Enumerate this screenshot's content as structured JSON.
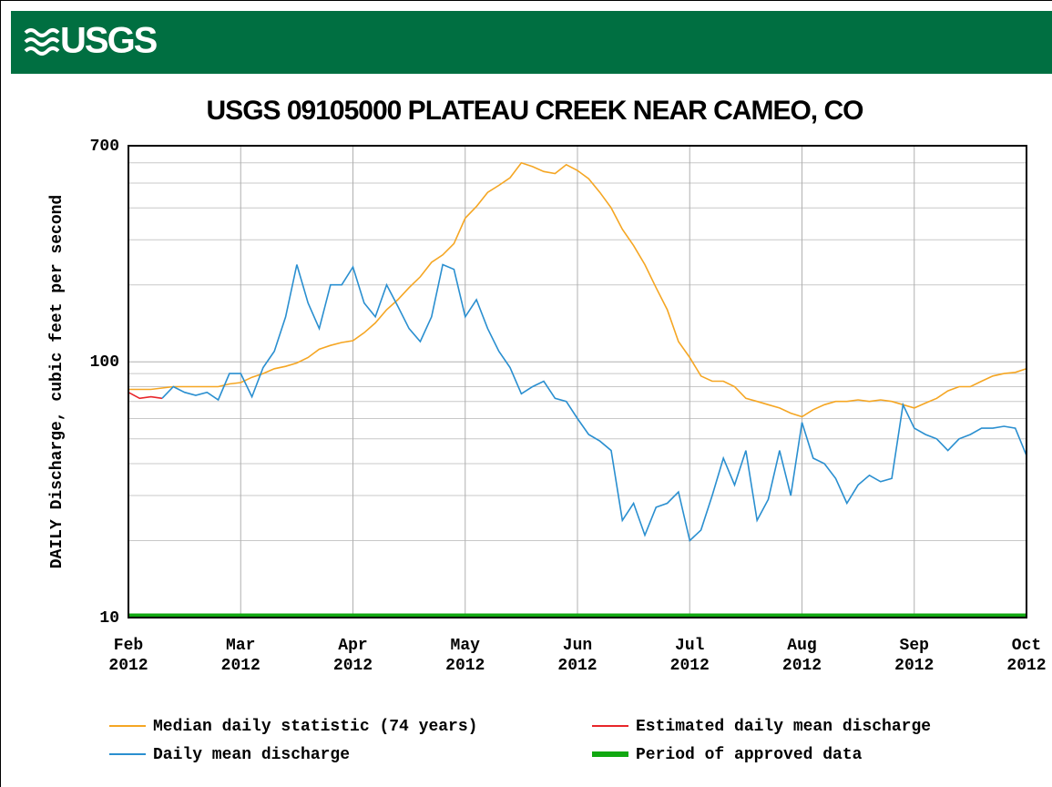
{
  "header": {
    "logo": "USGS"
  },
  "chart_data": {
    "type": "line",
    "title": "USGS 09105000 PLATEAU CREEK NEAR CAMEO, CO",
    "y_label": "DAILY Discharge, cubic feet per second",
    "log_y": true,
    "grid": true,
    "ylim": [
      10,
      700
    ],
    "yticks": [
      10,
      100,
      700
    ],
    "yminorticks": [
      20,
      30,
      40,
      50,
      60,
      70,
      80,
      90,
      200,
      300,
      400,
      500,
      600
    ],
    "categories": [
      "Feb 2012",
      null,
      null,
      null,
      null,
      null,
      null,
      null,
      null,
      null,
      "Mar 2012",
      null,
      null,
      null,
      null,
      null,
      null,
      null,
      null,
      null,
      "Apr 2012",
      null,
      null,
      null,
      null,
      null,
      null,
      null,
      null,
      null,
      "May 2012",
      null,
      null,
      null,
      null,
      null,
      null,
      null,
      null,
      null,
      "Jun 2012",
      null,
      null,
      null,
      null,
      null,
      null,
      null,
      null,
      null,
      "Jul 2012",
      null,
      null,
      null,
      null,
      null,
      null,
      null,
      null,
      null,
      "Aug 2012",
      null,
      null,
      null,
      null,
      null,
      null,
      null,
      null,
      null,
      "Sep 2012",
      null,
      null,
      null,
      null,
      null,
      null,
      null,
      null,
      null,
      "Oct 2012"
    ],
    "series": [
      {
        "name": "Median daily statistic (74 years)",
        "color": "#f5a623",
        "values": [
          78,
          78,
          78,
          79,
          80,
          80,
          80,
          80,
          80,
          82,
          83,
          87,
          90,
          94,
          96,
          99,
          104,
          112,
          116,
          119,
          121,
          130,
          142,
          160,
          175,
          195,
          215,
          245,
          262,
          290,
          365,
          405,
          460,
          490,
          525,
          600,
          580,
          555,
          545,
          590,
          560,
          520,
          460,
          400,
          330,
          285,
          240,
          195,
          160,
          120,
          104,
          88,
          84,
          84,
          80,
          72,
          70,
          68,
          66,
          63,
          61,
          65,
          68,
          70,
          70,
          71,
          70,
          71,
          70,
          68,
          66,
          69,
          72,
          77,
          80,
          80,
          84,
          88,
          90,
          91,
          94
        ]
      },
      {
        "name": "Estimated daily mean discharge",
        "color": "#e8262a",
        "values": [
          76,
          72,
          73,
          72,
          null,
          null,
          null,
          null,
          null,
          null,
          null,
          null,
          null,
          null,
          null,
          null,
          null,
          null,
          null,
          null,
          null,
          null,
          null,
          null,
          null,
          null,
          null,
          null,
          null,
          null,
          null,
          null,
          null,
          null,
          null,
          null,
          null,
          null,
          null,
          null,
          null,
          null,
          null,
          null,
          null,
          null,
          null,
          null,
          null,
          null,
          null,
          null,
          null,
          null,
          null,
          null,
          null,
          null,
          null,
          null,
          null,
          null,
          null,
          null,
          null,
          null,
          null,
          null,
          null,
          null,
          null,
          null,
          null,
          null,
          null,
          null,
          null,
          null,
          null,
          null,
          null
        ]
      },
      {
        "name": "Daily mean discharge",
        "color": "#2a8fd0",
        "values": [
          null,
          null,
          null,
          72,
          80,
          76,
          74,
          76,
          71,
          90,
          90,
          73,
          95,
          110,
          150,
          240,
          170,
          135,
          200,
          200,
          235,
          170,
          150,
          200,
          165,
          135,
          120,
          150,
          240,
          230,
          150,
          175,
          135,
          110,
          95,
          75,
          80,
          84,
          72,
          70,
          60,
          52,
          49,
          45,
          24,
          28,
          21,
          27,
          28,
          31,
          20,
          22,
          30,
          42,
          33,
          45,
          24,
          29,
          45,
          30,
          58,
          42,
          40,
          35,
          28,
          33,
          36,
          34,
          35,
          68,
          55,
          52,
          50,
          45,
          50,
          52,
          55,
          55,
          56,
          55,
          43
        ]
      }
    ],
    "approved_period": {
      "name": "Period of approved data",
      "color": "#11a811"
    }
  }
}
